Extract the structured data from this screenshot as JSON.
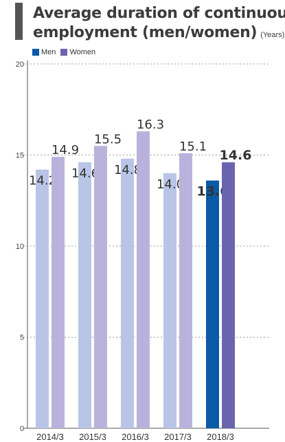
{
  "chart_data": {
    "type": "bar",
    "title_line1": "Average duration of continuous",
    "title_line2": "employment (men/women)",
    "unit": "(Years)",
    "categories": [
      "2014/3",
      "2015/3",
      "2016/3",
      "2017/3",
      "2018/3"
    ],
    "series": [
      {
        "name": "Men",
        "values": [
          14.2,
          14.6,
          14.8,
          14.0,
          13.6
        ],
        "color": "#b9c5e6",
        "highlight_color": "#0a5aa5"
      },
      {
        "name": "Women",
        "values": [
          14.9,
          15.5,
          16.3,
          15.1,
          14.6
        ],
        "color": "#bab2dc",
        "highlight_color": "#6a64b0"
      }
    ],
    "value_labels": [
      [
        "14.2",
        "14.6",
        "14.8",
        "14.0",
        "13.6"
      ],
      [
        "14.9",
        "15.5",
        "16.3",
        "15.1",
        "14.6"
      ]
    ],
    "highlight_index": 4,
    "highlight_label_colors": [
      "#0a5aa5",
      "#6a64b0"
    ],
    "ylim": [
      0,
      20
    ],
    "yticks": [
      0,
      5,
      10,
      15,
      20
    ],
    "ytick_labels": [
      "0",
      "5",
      "10",
      "15",
      "20"
    ],
    "grid": true,
    "legend_position": "top-left"
  }
}
